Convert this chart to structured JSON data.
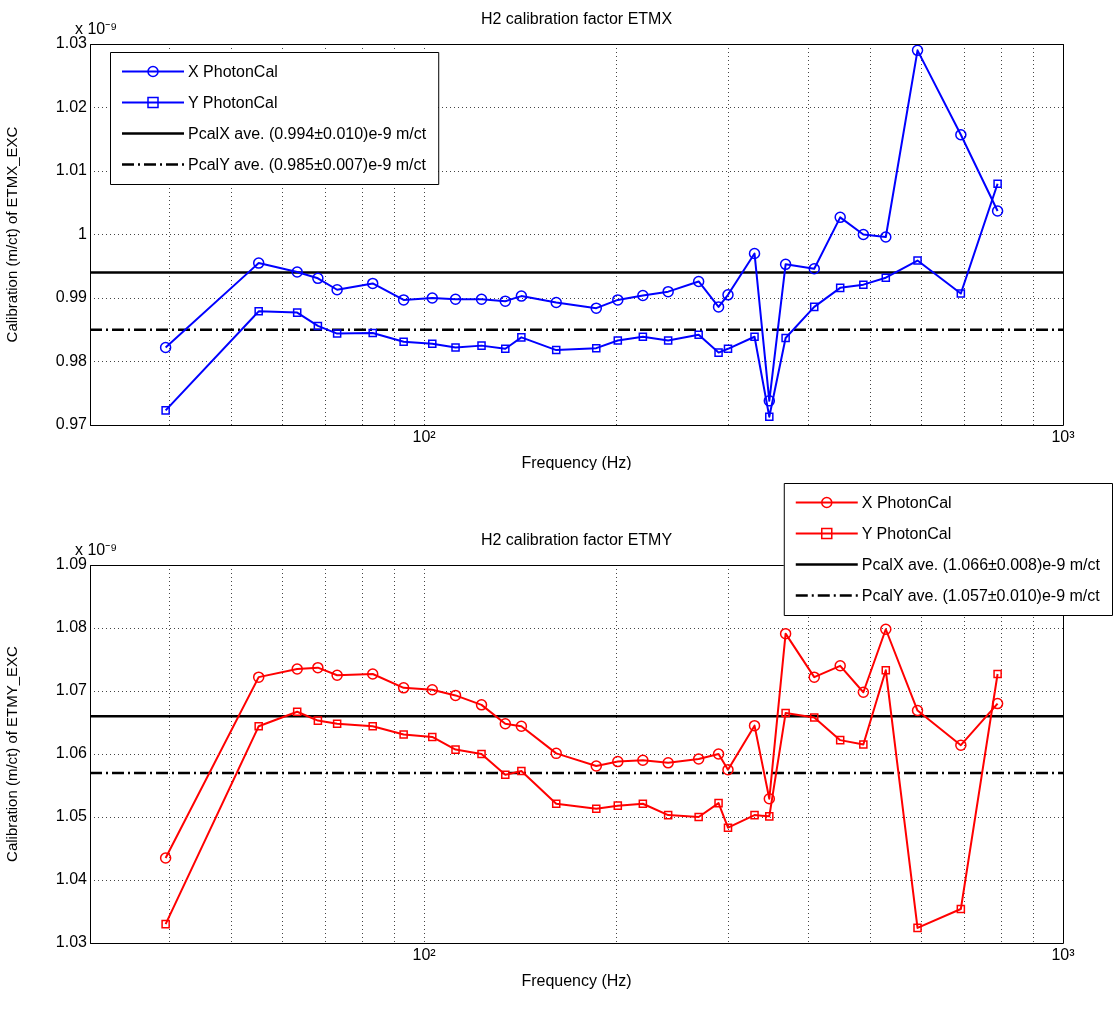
{
  "chart_data": [
    {
      "type": "line",
      "title": "H2 calibration factor ETMX",
      "xlabel": "Frequency (Hz)",
      "ylabel": "Calibration (m/ct) of ETMX_EXC",
      "annotations": [
        "x 10⁻⁹"
      ],
      "x": [
        39.4,
        55.1,
        63.3,
        68.2,
        73.1,
        83.1,
        92.9,
        103,
        112,
        123,
        134,
        142,
        161,
        186,
        201,
        220,
        241,
        269,
        289,
        299,
        329,
        347,
        368,
        408,
        448,
        487,
        528,
        592,
        692,
        790
      ],
      "series": [
        {
          "name": "X PhotonCal",
          "color": "#0000ff",
          "marker": "circle",
          "values": [
            0.9822,
            0.9955,
            0.9941,
            0.9931,
            0.9913,
            0.9923,
            0.9897,
            0.99,
            0.9898,
            0.9898,
            0.9895,
            0.9903,
            0.9893,
            0.9884,
            0.9897,
            0.9904,
            0.991,
            0.9926,
            0.9886,
            0.9905,
            0.997,
            0.9738,
            0.9953,
            0.9946,
            1.0027,
            1.0,
            0.9996,
            1.029,
            1.0157,
            1.0037
          ]
        },
        {
          "name": "Y PhotonCal",
          "color": "#0000ff",
          "marker": "square",
          "values": [
            0.9723,
            0.9879,
            0.9877,
            0.9856,
            0.9844,
            0.9845,
            0.9831,
            0.9828,
            0.9822,
            0.9825,
            0.982,
            0.9838,
            0.9818,
            0.9821,
            0.9833,
            0.9839,
            0.9833,
            0.9842,
            0.9814,
            0.982,
            0.9839,
            0.9713,
            0.9837,
            0.9886,
            0.9916,
            0.9921,
            0.9932,
            0.9959,
            0.9907,
            1.008
          ]
        }
      ],
      "ref_lines": [
        {
          "axis": "y",
          "value": 0.994,
          "label": "PcalX ave. (0.994±0.010)e-9 m/ct",
          "color": "#000000",
          "line_style": "solid"
        },
        {
          "axis": "y",
          "value": 0.985,
          "label": "PcalY ave. (0.985±0.007)e-9 m/ct",
          "color": "#000000",
          "line_style": "dashdot"
        }
      ],
      "log": "x",
      "xlim": [
        30,
        1000
      ],
      "xticks": [
        {
          "value": 40,
          "label": null
        },
        {
          "value": 50,
          "label": null
        },
        {
          "value": 60,
          "label": null
        },
        {
          "value": 70,
          "label": null
        },
        {
          "value": 80,
          "label": null
        },
        {
          "value": 90,
          "label": null
        },
        {
          "value": 100,
          "label": "10²"
        },
        {
          "value": 200,
          "label": null
        },
        {
          "value": 300,
          "label": null
        },
        {
          "value": 400,
          "label": null
        },
        {
          "value": 500,
          "label": null
        },
        {
          "value": 600,
          "label": null
        },
        {
          "value": 700,
          "label": null
        },
        {
          "value": 800,
          "label": null
        },
        {
          "value": 900,
          "label": null
        },
        {
          "value": 1000,
          "label": "10³"
        }
      ],
      "ylim": [
        0.97,
        1.03
      ],
      "yticks": [
        0.97,
        0.98,
        0.99,
        1,
        1.01,
        1.02,
        1.03
      ],
      "grid": true,
      "legend": "top left"
    },
    {
      "type": "line",
      "title": "H2 calibration factor ETMY",
      "xlabel": "Frequency (Hz)",
      "ylabel": "Calibration (m/ct) of ETMY_EXC",
      "annotations": [
        "x 10⁻⁹"
      ],
      "x": [
        39.4,
        55.1,
        63.3,
        68.2,
        73.1,
        83.1,
        92.9,
        103,
        112,
        123,
        134,
        142,
        161,
        186,
        201,
        220,
        241,
        269,
        289,
        299,
        329,
        347,
        368,
        408,
        448,
        487,
        528,
        592,
        692,
        790
      ],
      "series": [
        {
          "name": "X PhotonCal",
          "color": "#ff0000",
          "marker": "circle",
          "values": [
            1.0435,
            1.0722,
            1.0735,
            1.0737,
            1.0725,
            1.0727,
            1.0705,
            1.0702,
            1.0693,
            1.0678,
            1.0648,
            1.0644,
            1.0601,
            1.0581,
            1.0588,
            1.059,
            1.0586,
            1.0592,
            1.06,
            1.0575,
            1.0645,
            1.0529,
            1.0791,
            1.0722,
            1.074,
            1.0698,
            1.0798,
            1.0669,
            1.0614,
            1.068
          ]
        },
        {
          "name": "Y PhotonCal",
          "color": "#ff0000",
          "marker": "square",
          "values": [
            1.033,
            1.0644,
            1.0667,
            1.0653,
            1.0648,
            1.0644,
            1.0631,
            1.0627,
            1.0607,
            1.06,
            1.0567,
            1.0573,
            1.0521,
            1.0513,
            1.0518,
            1.0521,
            1.0503,
            1.05,
            1.0522,
            1.0483,
            1.0503,
            1.0501,
            1.0665,
            1.0658,
            1.0622,
            1.0615,
            1.0733,
            1.0324,
            1.0354,
            1.0727
          ]
        }
      ],
      "ref_lines": [
        {
          "axis": "y",
          "value": 1.066,
          "label": "PcalX ave. (1.066±0.008)e-9 m/ct",
          "color": "#000000",
          "line_style": "solid"
        },
        {
          "axis": "y",
          "value": 1.057,
          "label": "PcalY ave. (1.057±0.010)e-9 m/ct",
          "color": "#000000",
          "line_style": "dashdot"
        }
      ],
      "log": "x",
      "xlim": [
        30,
        1000
      ],
      "xticks": [
        {
          "value": 40,
          "label": null
        },
        {
          "value": 50,
          "label": null
        },
        {
          "value": 60,
          "label": null
        },
        {
          "value": 70,
          "label": null
        },
        {
          "value": 80,
          "label": null
        },
        {
          "value": 90,
          "label": null
        },
        {
          "value": 100,
          "label": "10²"
        },
        {
          "value": 200,
          "label": null
        },
        {
          "value": 300,
          "label": null
        },
        {
          "value": 400,
          "label": null
        },
        {
          "value": 500,
          "label": null
        },
        {
          "value": 600,
          "label": null
        },
        {
          "value": 700,
          "label": null
        },
        {
          "value": 800,
          "label": null
        },
        {
          "value": 900,
          "label": null
        },
        {
          "value": 1000,
          "label": "10³"
        }
      ],
      "ylim": [
        1.03,
        1.09
      ],
      "yticks": [
        1.03,
        1.04,
        1.05,
        1.06,
        1.07,
        1.08,
        1.09
      ],
      "grid": true,
      "legend": "top right"
    }
  ]
}
